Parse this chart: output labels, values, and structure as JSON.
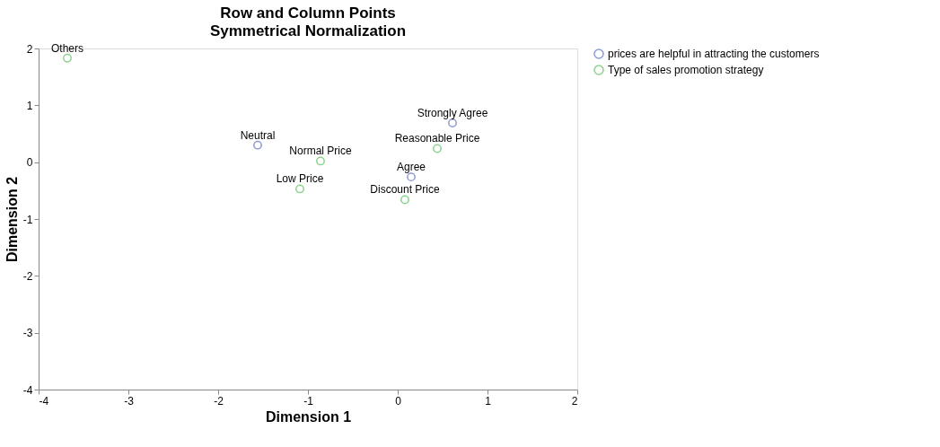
{
  "chart_data": {
    "type": "scatter",
    "title": "Row and Column Points",
    "subtitle": "Symmetrical Normalization",
    "xlabel": "Dimension 1",
    "ylabel": "Dimension 2",
    "series": [
      {
        "name": "prices are helpful in attracting the customers",
        "color": "#6070c0",
        "x": [
          0.61,
          -1.56,
          0.15
        ],
        "values": [
          0.69,
          0.3,
          -0.26
        ]
      },
      {
        "name": "Type of sales promotion strategy",
        "color": "#5cc05c",
        "x": [
          -3.68,
          -0.86,
          -1.09,
          0.44,
          0.08
        ],
        "values": [
          1.83,
          0.02,
          -0.47,
          0.24,
          -0.66
        ]
      }
    ],
    "annotations": [
      {
        "text": "Strongly Agree",
        "x": 0.61,
        "y": 0.69
      },
      {
        "text": "Neutral",
        "x": -1.56,
        "y": 0.3
      },
      {
        "text": "Agree",
        "x": 0.15,
        "y": -0.26
      },
      {
        "text": "Others",
        "x": -3.68,
        "y": 1.83
      },
      {
        "text": "Normal Price",
        "x": -0.86,
        "y": 0.02
      },
      {
        "text": "Low Price",
        "x": -1.09,
        "y": -0.47
      },
      {
        "text": "Reasonable Price",
        "x": 0.44,
        "y": 0.24
      },
      {
        "text": "Discount Price",
        "x": 0.08,
        "y": -0.66
      }
    ],
    "xlim": [
      -4,
      2
    ],
    "xticks": [
      -4,
      -3,
      -2,
      -1,
      0,
      1,
      2
    ],
    "ylim": [
      -4,
      2
    ],
    "yticks": [
      -4,
      -3,
      -2,
      -1,
      0,
      1,
      2
    ],
    "grid": false,
    "legend": "top right",
    "marker": "circle"
  }
}
